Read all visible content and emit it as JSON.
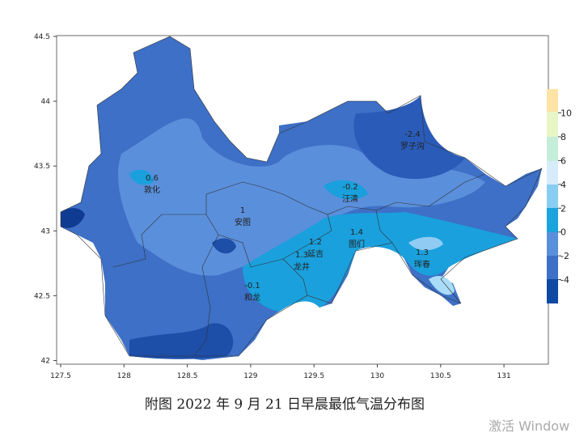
{
  "map": {
    "xticks": [
      127.5,
      128,
      128.5,
      129,
      129.5,
      130,
      130.5,
      131
    ],
    "yticks": [
      44.5,
      44,
      43.5,
      43,
      42.5,
      42
    ],
    "colorbar": {
      "ticks": [
        10,
        8,
        6,
        4,
        2,
        0,
        -2,
        -4
      ]
    },
    "stations": [
      {
        "name": "敦化",
        "value": 0.6
      },
      {
        "name": "安图",
        "value": 1
      },
      {
        "name": "汪清",
        "value": -0.2
      },
      {
        "name": "罗子沟",
        "value": -2.4
      },
      {
        "name": "图们",
        "value": 1.4
      },
      {
        "name": "延吉",
        "value": 1.2
      },
      {
        "name": "龙井",
        "value": 1.3
      },
      {
        "name": "珲春",
        "value": 1.3
      },
      {
        "name": "和龙",
        "value": -0.1
      }
    ]
  },
  "caption": "附图 2022 年 9 月 21 日早晨最低气温分布图",
  "watermark": "激活 Window"
}
